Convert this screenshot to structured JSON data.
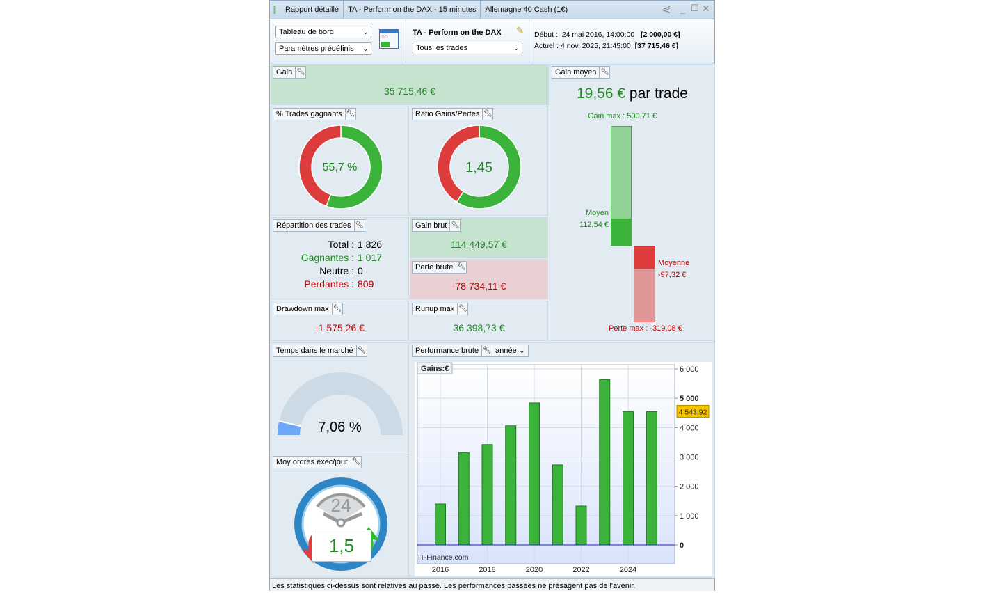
{
  "titlebar": {
    "tabs": [
      "Rapport détaillé",
      "TA - Perform on the DAX - 15 minutes",
      "Allemagne 40 Cash (1€)"
    ]
  },
  "toolbar": {
    "view_select": "Tableau de bord",
    "preset_select": "Paramètres prédéfinis",
    "strategy_name": "TA - Perform on the DAX",
    "trades_select": "Tous les trades",
    "start_label": "Début :",
    "start_date": "24 mai 2016, 14:00:00",
    "start_value": "[2 000,00 €]",
    "current_label": "Actuel :",
    "current_date": "4 nov. 2025, 21:45:00",
    "current_value": "[37 715,46 €]"
  },
  "gain": {
    "title": "Gain",
    "value": "35 715,46 €"
  },
  "win_rate": {
    "title": "% Trades gagnants",
    "value": "55,7 %",
    "fraction": 0.557
  },
  "ratio": {
    "title": "Ratio Gains/Pertes",
    "value": "1,45",
    "ratio": 1.45
  },
  "avg_gain": {
    "title": "Gain moyen",
    "value": "19,56 €",
    "suffix": "par trade",
    "gain_max_label": "Gain max : 500,71 €",
    "moyen_label": "Moyen",
    "moyen_value": "112,54 €",
    "moyenne_label": "Moyenne",
    "moyenne_value": "-97,32 €",
    "perte_max_label": "Perte max : -319,08 €",
    "gain_max": 500.71,
    "avg_win": 112.54,
    "avg_loss": 97.32,
    "loss_max": 319.08
  },
  "distribution": {
    "title": "Répartition des trades",
    "rows": [
      {
        "label": "Total :",
        "value": "1 826",
        "color": "#000000"
      },
      {
        "label": "Gagnantes :",
        "value": "1 017",
        "color": "#1f8a1f"
      },
      {
        "label": "Neutre :",
        "value": "0",
        "color": "#000000"
      },
      {
        "label": "Perdantes :",
        "value": "809",
        "color": "#c00000"
      }
    ]
  },
  "gross_gain": {
    "title": "Gain brut",
    "value": "114 449,57 €"
  },
  "gross_loss": {
    "title": "Perte brute",
    "value": "-78 734,11 €"
  },
  "drawdown": {
    "title": "Drawdown max",
    "value": "-1 575,26 €"
  },
  "runup": {
    "title": "Runup max",
    "value": "36 398,73 €"
  },
  "market_time": {
    "title": "Temps dans le marché",
    "value": "7,06 %",
    "fraction": 0.0706
  },
  "orders": {
    "title": "Moy ordres exec/jour",
    "value": "1,5",
    "clock_label": "24"
  },
  "performance": {
    "title": "Performance brute",
    "period_select": "année"
  },
  "chart_data": {
    "type": "bar",
    "title": "Gains:€",
    "watermark": "IT-Finance.com",
    "x": [
      2016,
      2017,
      2018,
      2019,
      2020,
      2021,
      2022,
      2023,
      2024,
      2025
    ],
    "xticks": [
      "2016",
      "2018",
      "2020",
      "2022",
      "2024"
    ],
    "values": [
      1400,
      3150,
      3420,
      4060,
      4840,
      2730,
      1330,
      5640,
      4550,
      4543.92
    ],
    "yticks": [
      "0",
      "1 000",
      "2 000",
      "3 000",
      "4 000",
      "5 000",
      "6 000"
    ],
    "ylim": [
      -550,
      6200
    ],
    "last_value_label": "4 543,92",
    "grid": true,
    "colors": {
      "bar": "#3bb33b",
      "bar_border": "#1e7a1e",
      "zero_line": "#2222bb"
    }
  },
  "footer": {
    "text": "Les statistiques ci-dessus sont relatives au passé. Les performances passées ne présagent pas de l'avenir."
  }
}
